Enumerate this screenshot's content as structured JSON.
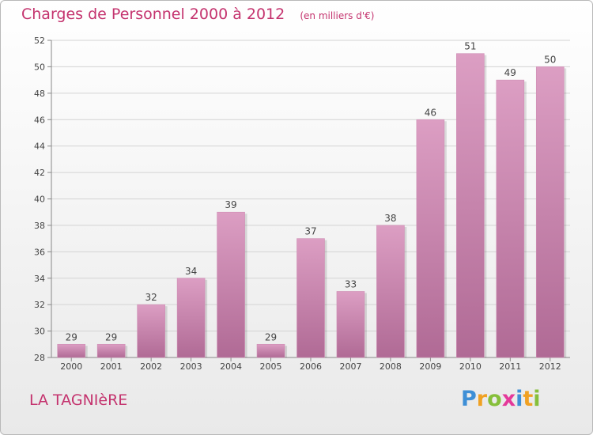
{
  "title": "Charges de Personnel 2000 à 2012",
  "subtitle": "(en milliers d'€)",
  "commune": "LA TAGNIèRE",
  "logo": {
    "letters": [
      "P",
      "r",
      "o",
      "x",
      "i",
      "t",
      "i"
    ],
    "colors": [
      "#3e8fd6",
      "#f0a123",
      "#86bf3a",
      "#e4399a",
      "#3e8fd6",
      "#f0a123",
      "#86bf3a"
    ]
  },
  "chart_data": {
    "type": "bar",
    "categories": [
      "2000",
      "2001",
      "2002",
      "2003",
      "2004",
      "2005",
      "2006",
      "2007",
      "2008",
      "2009",
      "2010",
      "2011",
      "2012"
    ],
    "values": [
      29,
      29,
      32,
      34,
      39,
      29,
      37,
      33,
      38,
      46,
      51,
      49,
      50
    ],
    "title": "Charges de Personnel 2000 à 2012",
    "xlabel": "",
    "ylabel": "",
    "ylim": [
      28,
      52
    ],
    "yticks": [
      28,
      30,
      32,
      34,
      36,
      38,
      40,
      42,
      44,
      46,
      48,
      50,
      52
    ],
    "grid": true,
    "bar_color": "#dc9ec3",
    "bar_color_dark": "#b06a95"
  }
}
